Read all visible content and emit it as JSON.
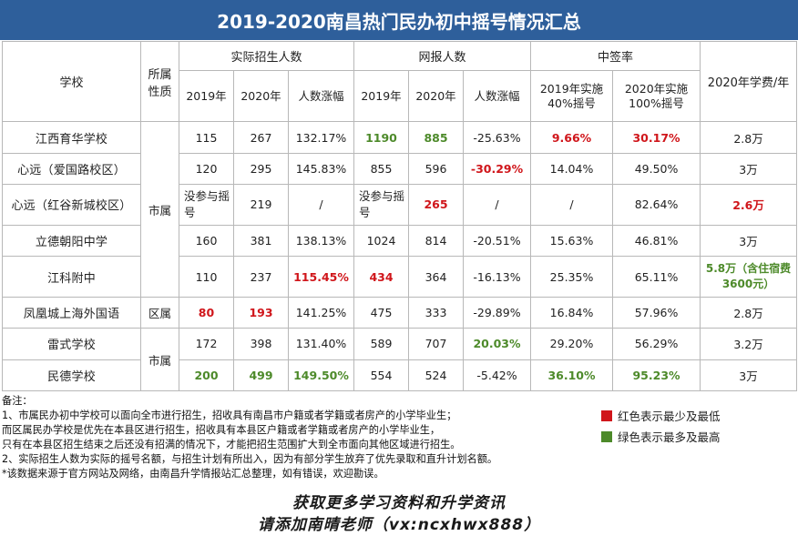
{
  "title": "2019-2020南昌热门民办初中摇号情况汇总",
  "header": {
    "school": "学校",
    "nature": "所属性质",
    "actual": "实际招生人数",
    "online": "网报人数",
    "rate": "中签率",
    "fee": "2020年学费/年",
    "y2019": "2019年",
    "y2020": "2020年",
    "actual_growth": "人数涨幅",
    "online_growth": "人数涨幅",
    "rate2019": "2019年实施40%摇号",
    "rate2020": "2020年实施100%摇号"
  },
  "groups": {
    "shi1": "市属",
    "qu": "区属",
    "shi2": "市属"
  },
  "rows": [
    {
      "school": "江西育华学校",
      "a19": "115",
      "a20": "267",
      "ag": "132.17%",
      "o19": "1190",
      "o20": "885",
      "og": "-25.63%",
      "r19": "9.66%",
      "r20": "30.17%",
      "fee": "2.8万"
    },
    {
      "school": "心远（爱国路校区）",
      "a19": "120",
      "a20": "295",
      "ag": "145.83%",
      "o19": "855",
      "o20": "596",
      "og": "-30.29%",
      "r19": "14.04%",
      "r20": "49.50%",
      "fee": "3万"
    },
    {
      "school": "心远（红谷新城校区）",
      "a19": "没参与摇号",
      "a20": "219",
      "ag": "/",
      "o19": "没参与摇号",
      "o20": "265",
      "og": "/",
      "r19": "/",
      "r20": "82.64%",
      "fee": "2.6万"
    },
    {
      "school": "立德朝阳中学",
      "a19": "160",
      "a20": "381",
      "ag": "138.13%",
      "o19": "1024",
      "o20": "814",
      "og": "-20.51%",
      "r19": "15.63%",
      "r20": "46.81%",
      "fee": "3万"
    },
    {
      "school": "江科附中",
      "a19": "110",
      "a20": "237",
      "ag": "115.45%",
      "o19": "434",
      "o20": "364",
      "og": "-16.13%",
      "r19": "25.35%",
      "r20": "65.11%",
      "fee": "5.8万（含住宿费3600元）"
    },
    {
      "school": "凤凰城上海外国语",
      "a19": "80",
      "a20": "193",
      "ag": "141.25%",
      "o19": "475",
      "o20": "333",
      "og": "-29.89%",
      "r19": "16.84%",
      "r20": "57.96%",
      "fee": "2.8万"
    },
    {
      "school": "雷式学校",
      "a19": "172",
      "a20": "398",
      "ag": "131.40%",
      "o19": "589",
      "o20": "707",
      "og": "20.03%",
      "r19": "29.20%",
      "r20": "56.29%",
      "fee": "3.2万"
    },
    {
      "school": "民德学校",
      "a19": "200",
      "a20": "499",
      "ag": "149.50%",
      "o19": "554",
      "o20": "524",
      "og": "-5.42%",
      "r19": "36.10%",
      "r20": "95.23%",
      "fee": "3万"
    }
  ],
  "notes": [
    "备注：",
    "1、市属民办初中学校可以面向全市进行招生，招收具有南昌市户籍或者学籍或者房产的小学毕业生；",
    "而区属民办学校是优先在本县区进行招生，招收具有本县区户籍或者学籍或者房产的小学毕业生，",
    "只有在本县区招生结束之后还没有招满的情况下，才能把招生范围扩大到全市面向其他区域进行招生。",
    "2、实际招生人数为实际的摇号名额，与招生计划有所出入，因为有部分学生放弃了优先录取和直升计划名额。",
    "*该数据来源于官方网站及网络，由南昌升学情报站汇总整理，如有错误，欢迎勘误。"
  ],
  "legend": {
    "red_text": "红色表示最少及最低",
    "green_text": "绿色表示最多及最高",
    "red_color": "#d0161b",
    "green_color": "#4d8a2a"
  },
  "footer": {
    "line1": "获取更多学习资料和升学资讯",
    "line2": "请添加南晴老师（vx:ncxhwx888）"
  },
  "colors": {
    "title_bg": "#2e5f9b"
  }
}
